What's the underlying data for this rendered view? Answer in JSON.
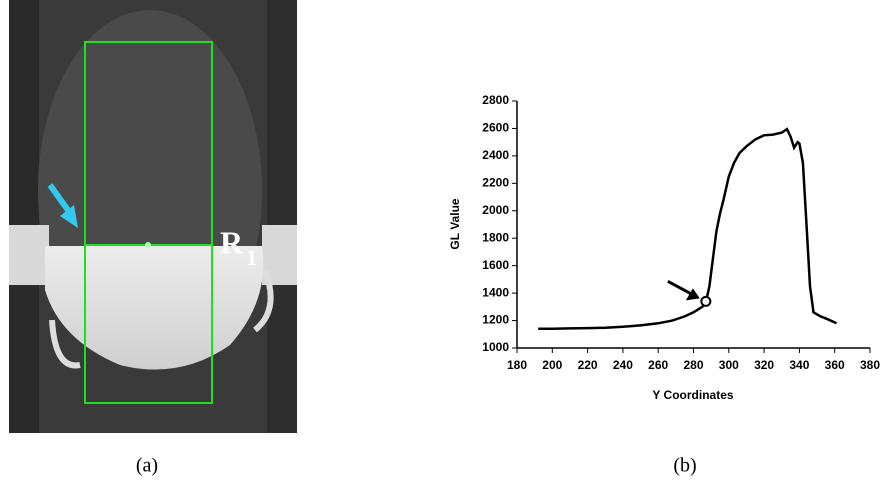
{
  "panel_a": {
    "region_label": "R",
    "region_subscript": "1",
    "caption": "(a)"
  },
  "chart_data": {
    "type": "line",
    "caption": "(b)",
    "x_label": "Y Coordinates",
    "y_label": "GL Value",
    "x": [
      192,
      200,
      210,
      220,
      230,
      240,
      250,
      260,
      268,
      275,
      280,
      285,
      287,
      289,
      291,
      293,
      295,
      297,
      300,
      303,
      306,
      310,
      315,
      320,
      325,
      330,
      333,
      335,
      337,
      339,
      340,
      342,
      344,
      346,
      348,
      352,
      356,
      361
    ],
    "values": [
      1140,
      1140,
      1143,
      1145,
      1148,
      1155,
      1165,
      1180,
      1200,
      1230,
      1260,
      1300,
      1335,
      1450,
      1650,
      1850,
      1980,
      2080,
      2250,
      2350,
      2420,
      2470,
      2520,
      2550,
      2555,
      2570,
      2595,
      2540,
      2460,
      2500,
      2490,
      2350,
      1900,
      1450,
      1260,
      1230,
      1210,
      1180
    ],
    "color": "#000000",
    "marker": {
      "x": 287,
      "y": 1340
    },
    "xlim": [
      180,
      380
    ],
    "xticks": [
      180,
      200,
      220,
      240,
      260,
      280,
      300,
      320,
      340,
      360,
      380
    ],
    "ylim": [
      1000,
      2800
    ],
    "yticks": [
      1000,
      1200,
      1400,
      1600,
      1800,
      2000,
      2200,
      2400,
      2600,
      2800
    ]
  }
}
